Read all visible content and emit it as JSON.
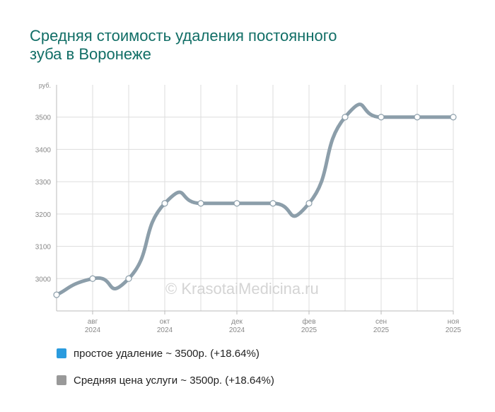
{
  "title_lines": [
    "Средняя стоимость удаления постоянного",
    "зуба в Воронеже"
  ],
  "watermark": "© KrasotaiMedicina.ru",
  "colors": {
    "title": "#116e66",
    "line": "#8c9eaa",
    "grid": "#dddddd",
    "point_fill": "#ffffff",
    "point_stroke": "#8c9eaa"
  },
  "chart_data": {
    "type": "line",
    "ylabel": "руб.",
    "ylim": [
      2900,
      3600
    ],
    "yticks": [
      3000,
      3100,
      3200,
      3300,
      3400,
      3500
    ],
    "x_index": [
      0,
      1,
      2,
      3,
      4,
      5,
      6,
      7,
      8,
      9,
      10,
      11
    ],
    "x_labels": [
      {
        "index": 1,
        "month": "авг",
        "year": "2024"
      },
      {
        "index": 3,
        "month": "окт",
        "year": "2024"
      },
      {
        "index": 5,
        "month": "дек",
        "year": "2024"
      },
      {
        "index": 7,
        "month": "фев",
        "year": "2025"
      },
      {
        "index": 9,
        "month": "сен",
        "year": "2025"
      },
      {
        "index": 11,
        "month": "ноя",
        "year": "2025"
      }
    ],
    "series": [
      {
        "name": "Средняя цена услуги",
        "values": [
          2950,
          3000,
          3000,
          3233,
          3233,
          3233,
          3233,
          3233,
          3500,
          3500,
          3500,
          3500
        ]
      }
    ],
    "legend": [
      {
        "label": "простое удаление ~ 3500р. (+18.64%)",
        "color": "#2a9bde"
      },
      {
        "label": "Средняя цена услуги ~ 3500р. (+18.64%)",
        "color": "#999999"
      }
    ],
    "legend_position": "bottom",
    "grid": true
  }
}
